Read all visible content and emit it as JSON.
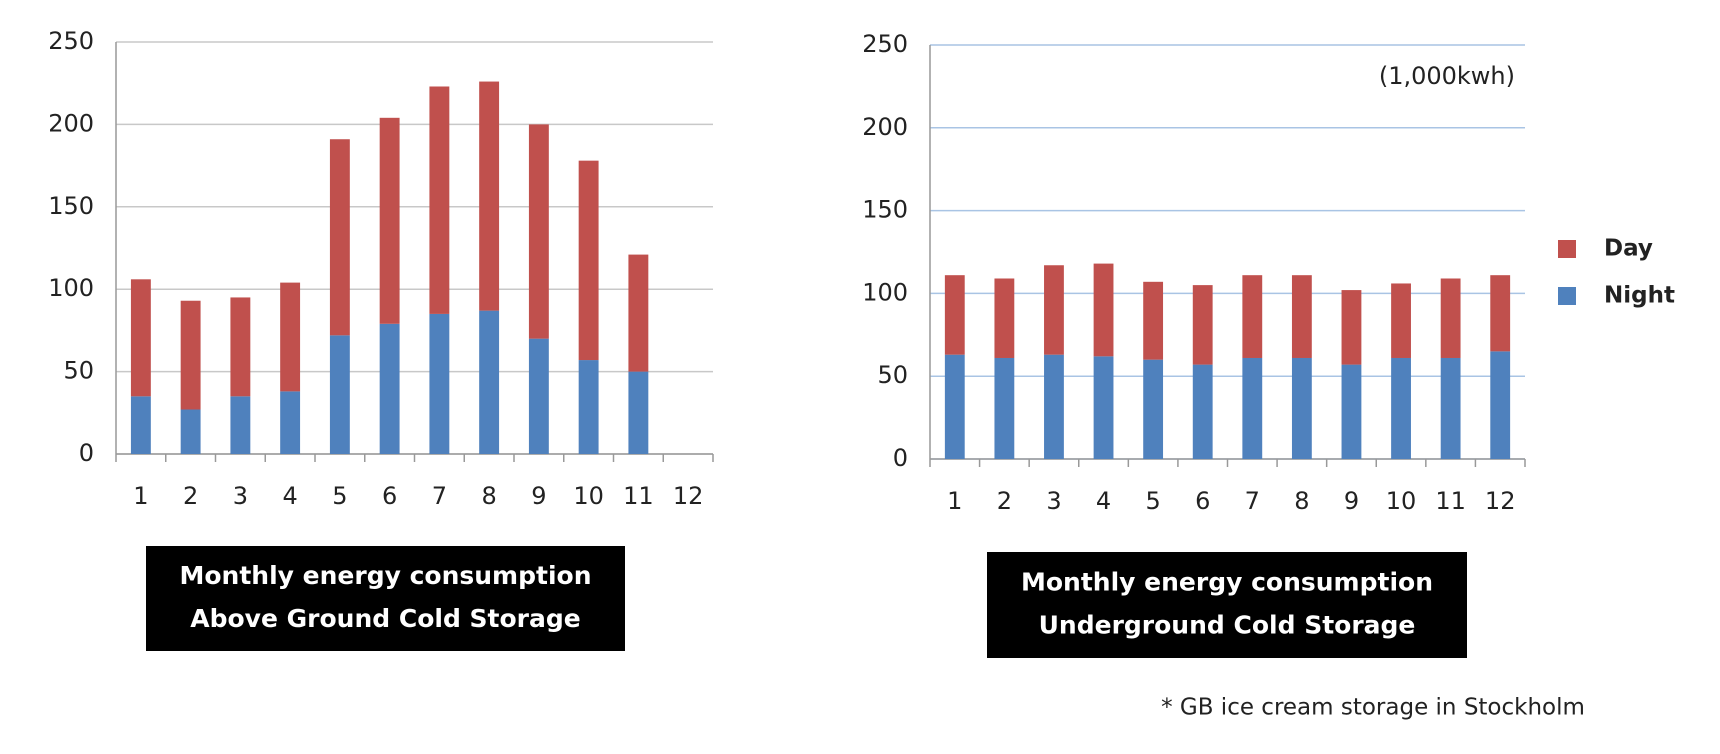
{
  "chart_data": [
    {
      "type": "stacked_bar",
      "title": [
        "Monthly energy consumption",
        "Above Ground Cold Storage"
      ],
      "categories": [
        "1",
        "2",
        "3",
        "4",
        "5",
        "6",
        "7",
        "8",
        "9",
        "10",
        "11",
        "12"
      ],
      "series": [
        {
          "name": "Night",
          "color": "#4f81bd",
          "values": [
            35,
            27,
            35,
            38,
            72,
            79,
            85,
            87,
            70,
            57,
            50,
            null
          ]
        },
        {
          "name": "Day",
          "color": "#c0504d",
          "values": [
            71,
            66,
            60,
            66,
            119,
            125,
            138,
            139,
            130,
            121,
            71,
            null
          ]
        }
      ],
      "ylim": [
        0,
        250
      ],
      "yticks": [
        0,
        50,
        100,
        150,
        200,
        250
      ],
      "grid": true,
      "grid_color": "#c8c8c8",
      "legend": false
    },
    {
      "type": "stacked_bar",
      "title": [
        "Monthly energy consumption",
        "Underground Cold Storage"
      ],
      "annotation": "(1,000kwh)",
      "footnote": "* GB ice cream storage in Stockholm",
      "categories": [
        "1",
        "2",
        "3",
        "4",
        "5",
        "6",
        "7",
        "8",
        "9",
        "10",
        "11",
        "12"
      ],
      "series": [
        {
          "name": "Night",
          "color": "#4f81bd",
          "values": [
            63,
            61,
            63,
            62,
            60,
            57,
            61,
            61,
            57,
            61,
            61,
            65
          ]
        },
        {
          "name": "Day",
          "color": "#c0504d",
          "values": [
            48,
            48,
            54,
            56,
            47,
            48,
            50,
            50,
            45,
            45,
            48,
            46
          ]
        }
      ],
      "ylim": [
        0,
        250
      ],
      "yticks": [
        0,
        50,
        100,
        150,
        200,
        250
      ],
      "grid": true,
      "grid_color": "#a9c4e4",
      "legend": true,
      "legend_position": "right"
    }
  ]
}
